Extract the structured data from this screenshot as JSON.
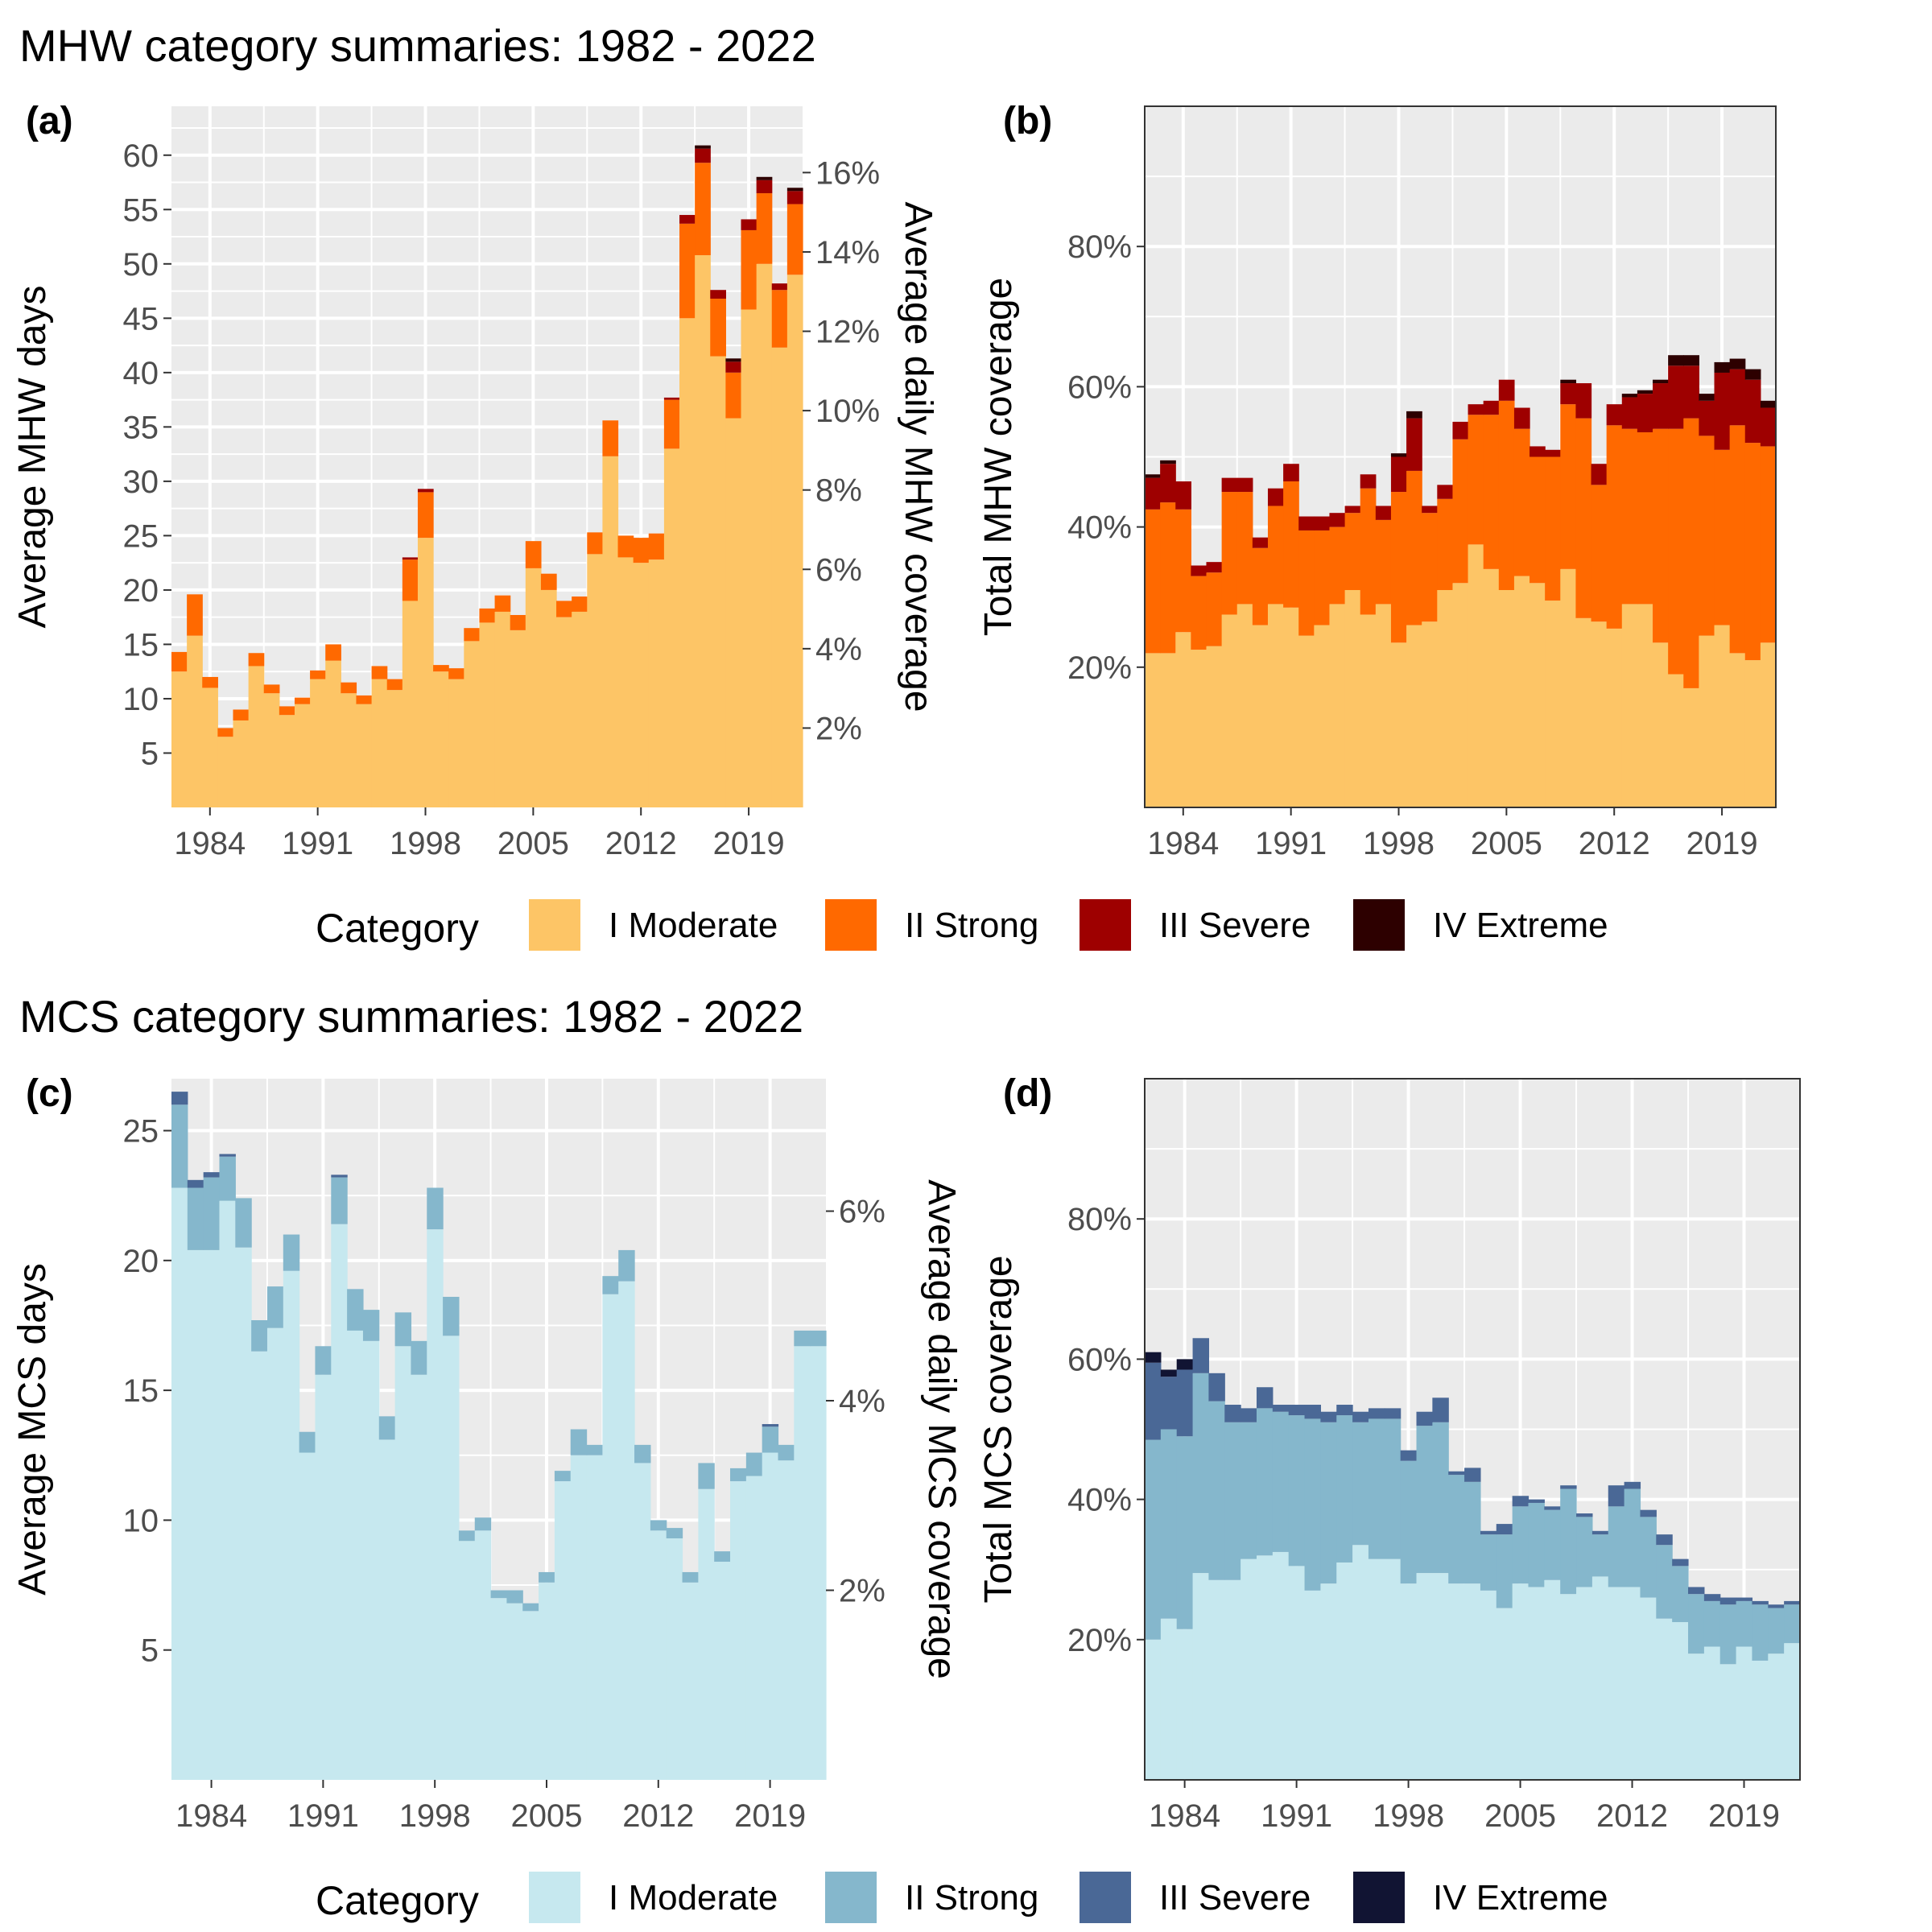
{
  "titles": {
    "mhw": "MHW category summaries: 1982 - 2022",
    "mcs": "MCS category summaries: 1982 - 2022"
  },
  "legend": {
    "title": "Category",
    "labels": [
      "I Moderate",
      "II Strong",
      "III Severe",
      "IV Extreme"
    ]
  },
  "colors": {
    "mhw": [
      "#fdc566",
      "#ff6900",
      "#9e0000",
      "#2d0000"
    ],
    "mcs": [
      "#c6e8ef",
      "#85b7cc",
      "#4a6896",
      "#111433"
    ],
    "panel_bg": "#ebebeb",
    "grid": "#ffffff",
    "tick_text": "#4d4d4d"
  },
  "chart_data": [
    {
      "id": "a",
      "panel_label": "(a)",
      "type": "bar",
      "stacked": true,
      "ylabel": "Average MHW days",
      "y2label": "Average daily MHW coverage",
      "xlim": [
        1981.5,
        2022.5
      ],
      "ylim": [
        0,
        64.5
      ],
      "xticks": [
        1984,
        1991,
        1998,
        2005,
        2012,
        2019
      ],
      "yticks": [
        5,
        10,
        15,
        20,
        25,
        30,
        35,
        40,
        45,
        50,
        55,
        60
      ],
      "y2_ticks": [
        "2%",
        "4%",
        "6%",
        "8%",
        "10%",
        "12%",
        "14%",
        "16%"
      ],
      "y2_tick_values": [
        7.3,
        14.6,
        21.9,
        29.2,
        36.5,
        43.8,
        51.1,
        58.4
      ],
      "x": [
        1982,
        1983,
        1984,
        1985,
        1986,
        1987,
        1988,
        1989,
        1990,
        1991,
        1992,
        1993,
        1994,
        1995,
        1996,
        1997,
        1998,
        1999,
        2000,
        2001,
        2002,
        2003,
        2004,
        2005,
        2006,
        2007,
        2008,
        2009,
        2010,
        2011,
        2012,
        2013,
        2014,
        2015,
        2016,
        2017,
        2018,
        2019,
        2020,
        2021,
        2022
      ],
      "series": [
        {
          "name": "I Moderate",
          "values": [
            12.5,
            15.8,
            11.0,
            6.5,
            8.0,
            13.0,
            10.5,
            8.5,
            9.5,
            11.8,
            13.5,
            10.5,
            9.5,
            11.8,
            10.8,
            19.0,
            24.8,
            12.5,
            11.8,
            15.3,
            17.0,
            18.0,
            16.3,
            22.0,
            20.0,
            17.5,
            18.0,
            23.3,
            32.3,
            23.0,
            22.5,
            22.8,
            33.0,
            45.0,
            50.8,
            41.5,
            35.8,
            45.8,
            50.0,
            42.3,
            49.0
          ]
        },
        {
          "name": "II Strong",
          "values": [
            1.8,
            3.8,
            1.0,
            0.8,
            1.0,
            1.2,
            0.8,
            0.8,
            0.6,
            0.8,
            1.5,
            1.0,
            0.8,
            1.2,
            1.0,
            3.8,
            4.2,
            0.6,
            1.0,
            1.2,
            1.3,
            1.5,
            1.4,
            2.5,
            1.5,
            1.5,
            1.4,
            2.0,
            3.3,
            2.0,
            2.3,
            2.4,
            4.5,
            8.7,
            8.5,
            5.3,
            4.2,
            7.3,
            6.5,
            5.3,
            6.5
          ]
        },
        {
          "name": "III Severe",
          "values": [
            0,
            0,
            0,
            0,
            0,
            0,
            0,
            0,
            0,
            0,
            0,
            0,
            0,
            0,
            0,
            0.2,
            0.3,
            0,
            0,
            0,
            0,
            0,
            0,
            0,
            0,
            0,
            0,
            0,
            0,
            0,
            0,
            0,
            0.2,
            0.8,
            1.3,
            0.8,
            1.0,
            1.0,
            1.2,
            0.6,
            1.2
          ]
        },
        {
          "name": "IV Extreme",
          "values": [
            0,
            0,
            0,
            0,
            0,
            0,
            0,
            0,
            0,
            0,
            0,
            0,
            0,
            0,
            0,
            0,
            0,
            0,
            0,
            0,
            0,
            0,
            0,
            0,
            0,
            0,
            0,
            0,
            0,
            0,
            0,
            0,
            0,
            0,
            0.3,
            0,
            0.3,
            0,
            0.3,
            0,
            0.3
          ]
        }
      ]
    },
    {
      "id": "b",
      "panel_label": "(b)",
      "type": "bar",
      "stacked": true,
      "ylabel": "Total MHW coverage",
      "xlim": [
        1981.5,
        2022.5
      ],
      "ylim": [
        0,
        100
      ],
      "xticks": [
        1984,
        1991,
        1998,
        2005,
        2012,
        2019
      ],
      "yticks": [
        20,
        40,
        60,
        80
      ],
      "ytick_labels": [
        "20%",
        "40%",
        "60%",
        "80%"
      ],
      "x": [
        1982,
        1983,
        1984,
        1985,
        1986,
        1987,
        1988,
        1989,
        1990,
        1991,
        1992,
        1993,
        1994,
        1995,
        1996,
        1997,
        1998,
        1999,
        2000,
        2001,
        2002,
        2003,
        2004,
        2005,
        2006,
        2007,
        2008,
        2009,
        2010,
        2011,
        2012,
        2013,
        2014,
        2015,
        2016,
        2017,
        2018,
        2019,
        2020,
        2021,
        2022
      ],
      "series": [
        {
          "name": "I Moderate",
          "values": [
            22,
            22,
            25,
            22.5,
            23,
            27.5,
            29,
            26,
            29,
            28.5,
            24.5,
            26,
            29,
            31,
            27.5,
            29,
            23.5,
            26,
            26.5,
            31,
            32,
            37.5,
            34,
            31,
            33,
            32,
            29.5,
            34,
            27,
            26.5,
            25.5,
            29,
            29,
            23.5,
            19,
            17,
            24.5,
            26,
            22,
            21,
            23.5
          ]
        },
        {
          "name": "II Strong",
          "values": [
            20.5,
            21.5,
            17.5,
            10.5,
            10.5,
            17.5,
            16,
            11,
            14,
            18,
            15,
            13.5,
            11,
            11,
            18,
            12,
            21.5,
            22,
            15.5,
            13,
            20.5,
            18.5,
            22,
            27,
            21,
            18,
            20.5,
            23.5,
            28.5,
            19.5,
            29,
            25,
            24.5,
            30.5,
            35,
            38.5,
            28.5,
            25,
            32.5,
            31,
            28
          ]
        },
        {
          "name": "III Severe",
          "values": [
            4.5,
            5.5,
            4,
            1.5,
            1.5,
            2,
            2,
            1.5,
            2.5,
            2.5,
            2,
            2,
            2,
            1,
            2,
            2,
            5,
            7.5,
            1,
            2,
            2.5,
            1.5,
            2,
            3,
            3,
            1.5,
            1,
            3,
            5,
            3,
            3,
            4.5,
            5.5,
            6.5,
            9,
            7.5,
            5,
            11,
            8,
            9,
            5.5
          ]
        },
        {
          "name": "IV Extreme",
          "values": [
            0.5,
            0.5,
            0,
            0,
            0,
            0,
            0,
            0,
            0,
            0,
            0,
            0,
            0,
            0,
            0,
            0,
            0.5,
            1,
            0,
            0,
            0,
            0,
            0,
            0,
            0,
            0,
            0,
            0.5,
            0,
            0,
            0,
            0.5,
            0.5,
            0.5,
            1.5,
            1.5,
            1,
            1.5,
            1.5,
            1.5,
            1
          ]
        }
      ]
    },
    {
      "id": "c",
      "panel_label": "(c)",
      "type": "bar",
      "stacked": true,
      "ylabel": "Average MCS days",
      "y2label": "Average daily MCS coverage",
      "xlim": [
        1981.5,
        2022.5
      ],
      "ylim": [
        0,
        27
      ],
      "xticks": [
        1984,
        1991,
        1998,
        2005,
        2012,
        2019
      ],
      "yticks": [
        5,
        10,
        15,
        20,
        25
      ],
      "y2_ticks": [
        "2%",
        "4%",
        "6%"
      ],
      "y2_tick_values": [
        7.3,
        14.6,
        21.9
      ],
      "x": [
        1982,
        1983,
        1984,
        1985,
        1986,
        1987,
        1988,
        1989,
        1990,
        1991,
        1992,
        1993,
        1994,
        1995,
        1996,
        1997,
        1998,
        1999,
        2000,
        2001,
        2002,
        2003,
        2004,
        2005,
        2006,
        2007,
        2008,
        2009,
        2010,
        2011,
        2012,
        2013,
        2014,
        2015,
        2016,
        2017,
        2018,
        2019,
        2020,
        2021,
        2022
      ],
      "series": [
        {
          "name": "I Moderate",
          "values": [
            22.8,
            20.4,
            20.4,
            22.3,
            20.5,
            16.5,
            17.4,
            19.6,
            12.6,
            15.6,
            21.4,
            17.3,
            16.9,
            13.1,
            16.7,
            15.6,
            21.2,
            17.1,
            9.2,
            9.6,
            7,
            6.8,
            6.5,
            7.6,
            11.5,
            12.5,
            12.5,
            18.7,
            19.2,
            12.2,
            9.6,
            9.3,
            7.6,
            11.2,
            8.4,
            11.5,
            11.7,
            12.6,
            12.3,
            16.7,
            16.7
          ]
        },
        {
          "name": "II Strong",
          "values": [
            3.2,
            2.4,
            2.8,
            1.7,
            1.9,
            1.2,
            1.6,
            1.4,
            0.8,
            1.1,
            1.8,
            1.6,
            1.2,
            0.9,
            1.3,
            1.3,
            1.6,
            1.5,
            0.4,
            0.5,
            0.3,
            0.5,
            0.3,
            0.4,
            0.4,
            1,
            0.4,
            0.7,
            1.2,
            0.7,
            0.4,
            0.4,
            0.4,
            1,
            0.4,
            0.5,
            0.9,
            1,
            0.6,
            0.6,
            0.6
          ]
        },
        {
          "name": "III Severe",
          "values": [
            0.5,
            0.3,
            0.2,
            0.1,
            0,
            0,
            0,
            0,
            0,
            0,
            0.1,
            0,
            0,
            0,
            0,
            0,
            0,
            0,
            0,
            0,
            0,
            0,
            0,
            0,
            0,
            0,
            0,
            0,
            0,
            0,
            0,
            0,
            0,
            0,
            0,
            0,
            0,
            0.1,
            0,
            0,
            0
          ]
        },
        {
          "name": "IV Extreme",
          "values": [
            0,
            0,
            0,
            0,
            0,
            0,
            0,
            0,
            0,
            0,
            0,
            0,
            0,
            0,
            0,
            0,
            0,
            0,
            0,
            0,
            0,
            0,
            0,
            0,
            0,
            0,
            0,
            0,
            0,
            0,
            0,
            0,
            0,
            0,
            0,
            0,
            0,
            0,
            0,
            0,
            0
          ]
        }
      ]
    },
    {
      "id": "d",
      "panel_label": "(d)",
      "type": "bar",
      "stacked": true,
      "ylabel": "Total MCS coverage",
      "xlim": [
        1981.5,
        2022.5
      ],
      "ylim": [
        0,
        100
      ],
      "xticks": [
        1984,
        1991,
        1998,
        2005,
        2012,
        2019
      ],
      "yticks": [
        20,
        40,
        60,
        80
      ],
      "ytick_labels": [
        "20%",
        "40%",
        "60%",
        "80%"
      ],
      "x": [
        1982,
        1983,
        1984,
        1985,
        1986,
        1987,
        1988,
        1989,
        1990,
        1991,
        1992,
        1993,
        1994,
        1995,
        1996,
        1997,
        1998,
        1999,
        2000,
        2001,
        2002,
        2003,
        2004,
        2005,
        2006,
        2007,
        2008,
        2009,
        2010,
        2011,
        2012,
        2013,
        2014,
        2015,
        2016,
        2017,
        2018,
        2019,
        2020,
        2021,
        2022
      ],
      "series": [
        {
          "name": "I Moderate",
          "values": [
            20,
            23,
            21.5,
            29.5,
            28.5,
            28.5,
            31.5,
            32,
            32.5,
            30.5,
            27,
            28,
            31,
            33.5,
            31.5,
            31.5,
            28,
            29.5,
            29.5,
            28,
            28,
            27,
            24.5,
            28,
            27.5,
            28.5,
            26.5,
            27.5,
            29,
            27.5,
            27.5,
            26,
            23,
            22.5,
            18,
            19,
            16.5,
            19,
            17,
            18,
            19.5
          ]
        },
        {
          "name": "II Strong",
          "values": [
            28.5,
            27,
            27.5,
            28.5,
            25.5,
            22.5,
            19.5,
            21,
            20,
            21.5,
            24.5,
            23,
            21,
            17.5,
            20,
            20,
            17.5,
            21,
            21.5,
            15.5,
            14.5,
            8,
            10.5,
            11,
            12,
            10,
            15,
            10,
            6,
            11.5,
            14,
            11.5,
            10.5,
            8,
            8.5,
            6.5,
            8.5,
            6.5,
            8,
            6.5,
            5.5
          ]
        },
        {
          "name": "III Severe",
          "values": [
            11,
            7.5,
            9.5,
            5,
            4,
            2.5,
            2,
            3,
            1,
            1.5,
            2,
            1.5,
            1.5,
            1.5,
            1.5,
            1.5,
            1.5,
            2,
            3.5,
            0.5,
            2,
            0.5,
            1.5,
            1.5,
            0.5,
            0.5,
            0.5,
            0.5,
            0.5,
            3,
            1,
            1,
            1.5,
            1,
            1,
            1,
            1,
            0.5,
            0.5,
            0.5,
            0.5
          ]
        },
        {
          "name": "IV Extreme",
          "values": [
            1.5,
            1,
            1.5,
            0,
            0,
            0,
            0,
            0,
            0,
            0,
            0,
            0,
            0,
            0,
            0,
            0,
            0,
            0,
            0,
            0,
            0,
            0,
            0,
            0,
            0,
            0,
            0,
            0,
            0,
            0,
            0,
            0,
            0,
            0,
            0,
            0,
            0,
            0,
            0,
            0,
            0
          ]
        }
      ]
    }
  ]
}
